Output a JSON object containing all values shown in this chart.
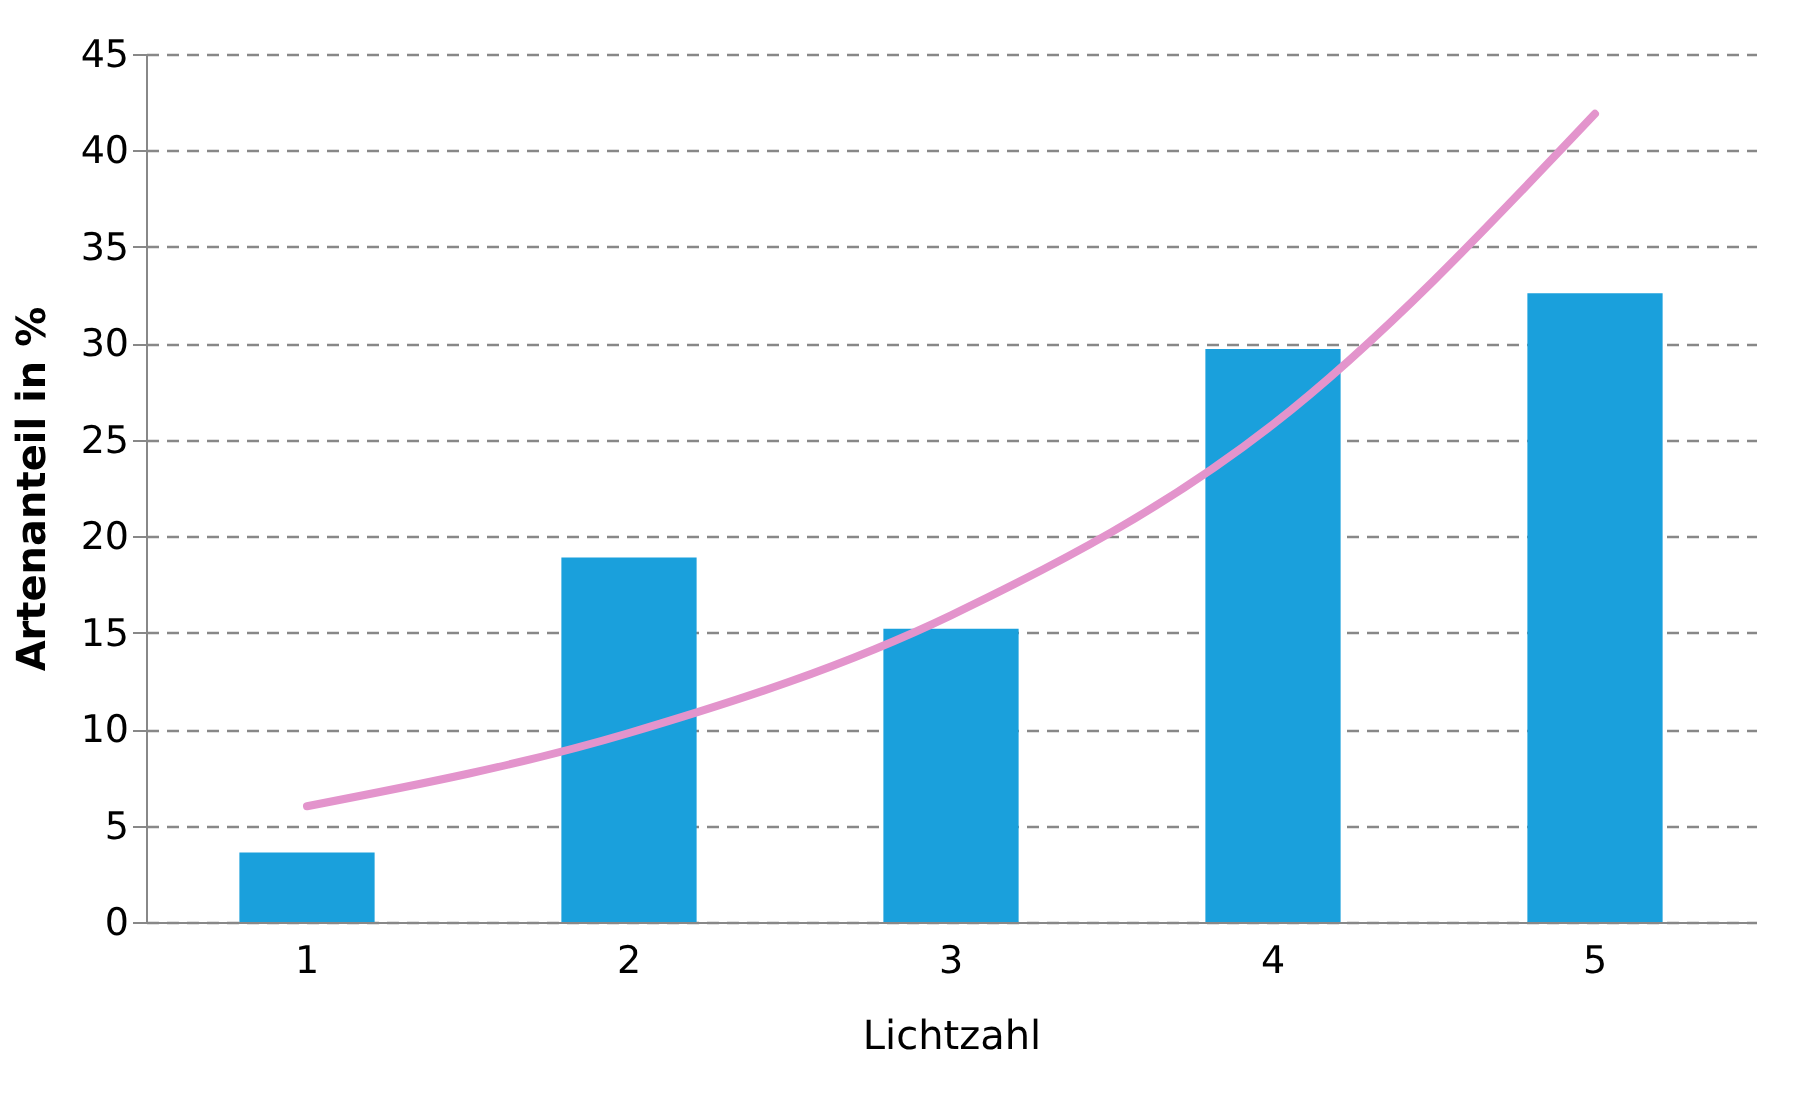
{
  "chart_data": {
    "type": "bar",
    "xlabel": "Lichtzahl",
    "ylabel": "Artenanteil in %",
    "categories": [
      "1",
      "2",
      "3",
      "4",
      "5"
    ],
    "series": [
      {
        "color": "#1aa0dc",
        "values": [
          3.6,
          18.9,
          15.2,
          29.7,
          32.6
        ]
      },
      {
        "type": "line",
        "color": "#e394cc",
        "values": [
          6.0,
          9.8,
          15.9,
          25.8,
          41.9
        ]
      }
    ],
    "ylim": [
      0,
      45
    ],
    "yticks": [
      0,
      5,
      10,
      15,
      20,
      25,
      30,
      35,
      40,
      45
    ],
    "grid": "y"
  }
}
